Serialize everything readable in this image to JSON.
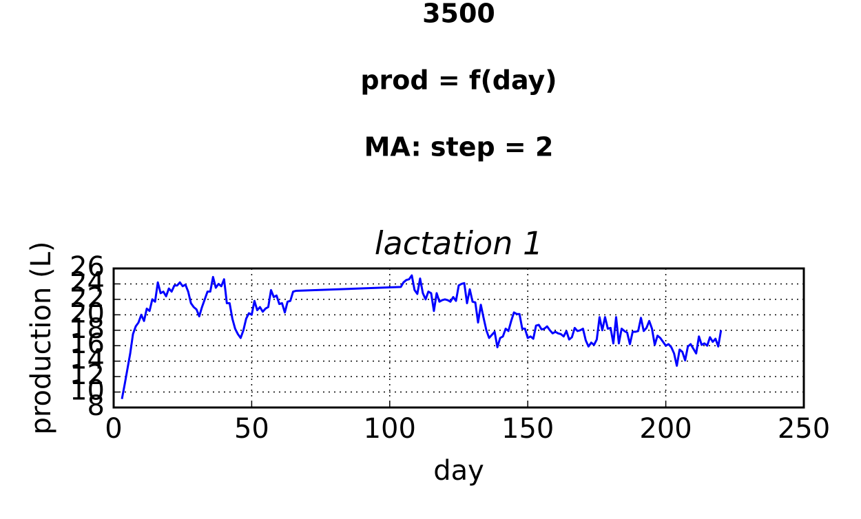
{
  "chart_data": {
    "type": "line",
    "suptitle": [
      "3500",
      "prod = f(day)",
      "MA: step = 2"
    ],
    "title": "lactation 1",
    "xlabel": "day",
    "ylabel": "production (L)",
    "xlim": [
      0,
      250
    ],
    "xticks": [
      0,
      50,
      100,
      150,
      200,
      250
    ],
    "ylim": [
      8,
      26
    ],
    "yticks": [
      8,
      10,
      12,
      14,
      16,
      18,
      20,
      22,
      24,
      26
    ],
    "grid": true,
    "x": [
      3,
      4,
      5,
      6,
      7,
      8,
      9,
      10,
      11,
      12,
      13,
      14,
      15,
      16,
      17,
      18,
      19,
      20,
      21,
      22,
      23,
      24,
      25,
      26,
      27,
      28,
      29,
      30,
      31,
      32,
      33,
      34,
      35,
      36,
      37,
      38,
      39,
      40,
      41,
      42,
      43,
      44,
      45,
      46,
      47,
      48,
      49,
      50,
      51,
      52,
      53,
      54,
      55,
      56,
      57,
      58,
      59,
      60,
      61,
      62,
      63,
      64,
      65,
      66,
      104,
      105,
      106,
      107,
      108,
      109,
      110,
      111,
      112,
      113,
      114,
      115,
      116,
      117,
      118,
      119,
      120,
      121,
      122,
      123,
      124,
      125,
      126,
      127,
      128,
      129,
      130,
      131,
      132,
      133,
      134,
      135,
      136,
      137,
      138,
      139,
      140,
      141,
      142,
      143,
      144,
      145,
      146,
      147,
      148,
      149,
      150,
      151,
      152,
      153,
      154,
      155,
      156,
      157,
      158,
      159,
      160,
      161,
      162,
      163,
      164,
      165,
      166,
      167,
      168,
      169,
      170,
      171,
      172,
      173,
      174,
      175,
      176,
      177,
      178,
      179,
      180,
      181,
      182,
      183,
      184,
      185,
      186,
      187,
      188,
      189,
      190,
      191,
      192,
      193,
      194,
      195,
      196,
      197,
      198,
      199,
      200,
      201,
      202,
      203,
      204,
      205,
      206,
      207,
      208,
      209,
      210,
      211,
      212,
      213,
      214,
      215,
      216,
      217,
      218,
      219,
      220
    ],
    "series": [
      {
        "color": "#0000ff",
        "values": [
          9.1,
          11,
          13,
          15,
          17.5,
          18.5,
          19,
          20,
          19.2,
          20.8,
          20.5,
          22,
          21.7,
          24.2,
          22.8,
          23,
          22.4,
          23.4,
          23,
          23.8,
          23.8,
          24.2,
          23.7,
          23.9,
          23,
          21.5,
          21,
          20.7,
          19.8,
          21,
          22,
          23,
          23,
          24.9,
          23.5,
          24,
          23.7,
          24.6,
          21.5,
          21.5,
          19.5,
          18.2,
          17.5,
          17,
          18,
          19.5,
          20.2,
          20,
          21.8,
          20.6,
          21,
          20.4,
          20.8,
          21,
          23.2,
          22.3,
          22.5,
          21.4,
          21.5,
          20.3,
          21.7,
          21.8,
          23,
          23.1,
          23.6,
          24.2,
          24.5,
          24.6,
          25.1,
          23.2,
          22.7,
          24.7,
          22.8,
          22,
          23,
          22.8,
          20.5,
          22.8,
          21.7,
          21.9,
          22,
          21.9,
          21.7,
          22.3,
          21.8,
          23.8,
          24,
          24.1,
          21.5,
          23.3,
          21.7,
          21.6,
          19,
          21.3,
          19.6,
          18,
          17,
          17.4,
          17.8,
          15.8,
          17,
          17.2,
          18.2,
          17.9,
          19.2,
          20.3,
          20.1,
          20.1,
          18.2,
          18.2,
          17,
          17.2,
          16.9,
          18.6,
          18.7,
          18.1,
          18.2,
          18.5,
          18,
          17.6,
          17.8,
          17.6,
          17.5,
          17.2,
          17.9,
          16.8,
          17.1,
          18.3,
          17.9,
          18,
          18.2,
          16.7,
          15.9,
          16.4,
          16.1,
          16.8,
          19.7,
          18,
          19.7,
          18.2,
          18.3,
          16.3,
          19.7,
          16.3,
          18.2,
          17.9,
          17.7,
          16.2,
          17.8,
          17.8,
          17.9,
          19.6,
          17.9,
          18.3,
          19.2,
          18.2,
          16.1,
          17.3,
          17,
          16.5,
          16,
          16.2,
          15.8,
          15,
          13.4,
          15.5,
          15.2,
          14.1,
          15.9,
          16.2,
          15.6,
          15,
          17.2,
          16.1,
          16.3,
          16,
          17.1,
          16.5,
          16.9,
          15.9,
          18
        ]
      }
    ]
  }
}
